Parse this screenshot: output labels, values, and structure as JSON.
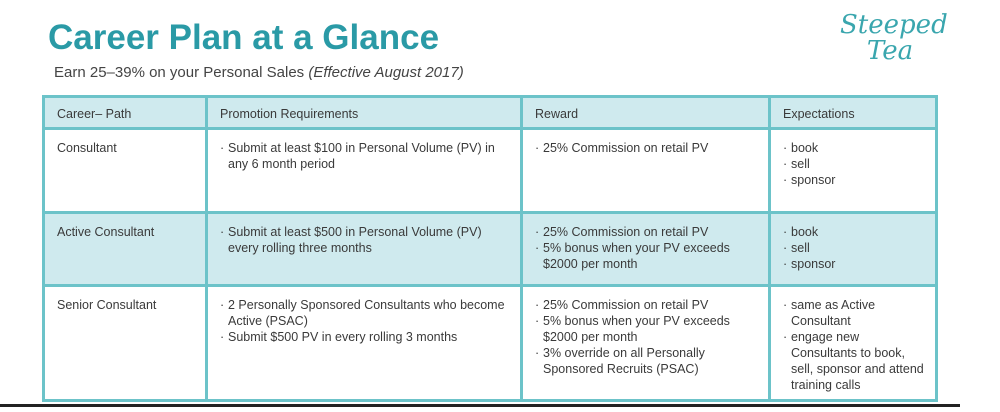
{
  "header": {
    "title": "Career Plan at a Glance",
    "subtitle": "Earn 25–39% on your Personal Sales",
    "subtitle_note": "(Effective August 2017)",
    "logo": "Steeped Tea"
  },
  "table": {
    "columns": [
      "Career– Path",
      "Promotion Requirements",
      "Reward",
      "Expectations"
    ],
    "rows": [
      [
        "Consultant",
        [
          "Submit at least $100 in Personal Volume (PV) in any 6 month period"
        ],
        [
          "25% Commission on retail PV"
        ],
        [
          "book",
          "sell",
          "sponsor"
        ]
      ],
      [
        "Active Consultant",
        [
          "Submit at least $500 in Personal Volume (PV) every rolling three months"
        ],
        [
          "25% Commission on retail PV",
          "5% bonus when your PV exceeds $2000 per month"
        ],
        [
          "book",
          "sell",
          "sponsor"
        ]
      ],
      [
        "Senior Consultant",
        [
          "2 Personally Sponsored Consultants who become Active (PSAC)",
          "Submit $500 PV in every rolling 3 months"
        ],
        [
          "25% Commission on retail PV",
          "5% bonus when your PV exceeds $2000 per month",
          "3% override on all Personally Sponsored Recruits (PSAC)"
        ],
        [
          "same as Active Consultant",
          "engage new Consultants to book, sell, sponsor and attend training calls"
        ]
      ]
    ]
  }
}
